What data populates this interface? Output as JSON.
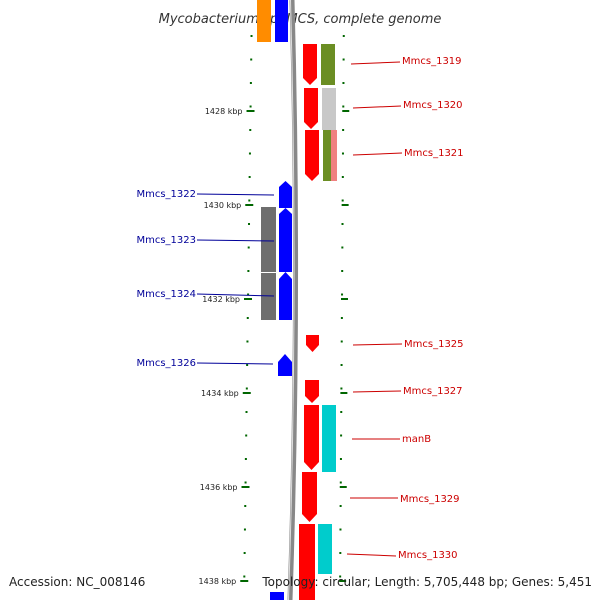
{
  "title": "Mycobacterium sp. MCS, complete genome",
  "footer": {
    "accession": "Accession: NC_008146",
    "topology": "Topology: circular; Length: 5,705,448 bp; Genes: 5,451"
  },
  "colors": {
    "plus_strand": "#ff0000",
    "minus_strand": "#0000ff",
    "label_plus": "#cc0000",
    "label_minus": "#000099",
    "tick": "#006600",
    "backbone": "#888888",
    "olive": "#6b8e23",
    "gray_light": "#c8c8c8",
    "gray_dark": "#6e6e6e",
    "cyan": "#00cccc",
    "salmon": "#f08080",
    "orange": "#ff8c00"
  },
  "ticks": [
    {
      "label": "1428 kbp",
      "kbp": 1428
    },
    {
      "label": "1430 kbp",
      "kbp": 1430
    },
    {
      "label": "1432 kbp",
      "kbp": 1432
    },
    {
      "label": "1434 kbp",
      "kbp": 1434
    },
    {
      "label": "1436 kbp",
      "kbp": 1436
    },
    {
      "label": "1438 kbp",
      "kbp": 1438
    }
  ],
  "genes_plus": [
    {
      "label": "Mmcs_1319"
    },
    {
      "label": "Mmcs_1320"
    },
    {
      "label": "Mmcs_1321"
    },
    {
      "label": "Mmcs_1325"
    },
    {
      "label": "Mmcs_1327"
    },
    {
      "label": "manB"
    },
    {
      "label": "Mmcs_1329"
    },
    {
      "label": "Mmcs_1330"
    }
  ],
  "genes_minus": [
    {
      "label": "Mmcs_1322"
    },
    {
      "label": "Mmcs_1323"
    },
    {
      "label": "Mmcs_1324"
    },
    {
      "label": "Mmcs_1326"
    }
  ]
}
